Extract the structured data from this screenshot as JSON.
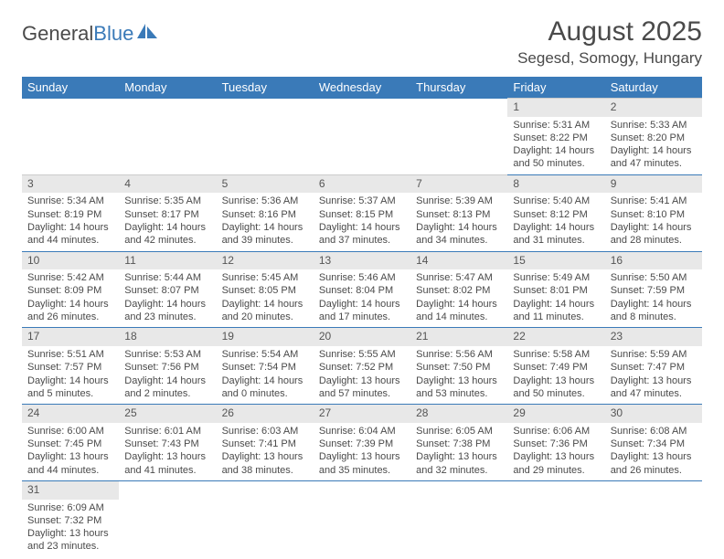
{
  "brand": {
    "part1": "General",
    "part2": "Blue"
  },
  "title": "August 2025",
  "location": "Segesd, Somogy, Hungary",
  "colors": {
    "accent": "#3a7ab8",
    "header_bg": "#3a7ab8",
    "daynum_bg": "#e8e8e8",
    "text": "#4a4a4a"
  },
  "daynames": [
    "Sunday",
    "Monday",
    "Tuesday",
    "Wednesday",
    "Thursday",
    "Friday",
    "Saturday"
  ],
  "layout": {
    "first_weekday_index": 5,
    "days_in_month": 31
  },
  "days": {
    "1": {
      "sunrise": "5:31 AM",
      "sunset": "8:22 PM",
      "dl1": "Daylight: 14 hours",
      "dl2": "and 50 minutes."
    },
    "2": {
      "sunrise": "5:33 AM",
      "sunset": "8:20 PM",
      "dl1": "Daylight: 14 hours",
      "dl2": "and 47 minutes."
    },
    "3": {
      "sunrise": "5:34 AM",
      "sunset": "8:19 PM",
      "dl1": "Daylight: 14 hours",
      "dl2": "and 44 minutes."
    },
    "4": {
      "sunrise": "5:35 AM",
      "sunset": "8:17 PM",
      "dl1": "Daylight: 14 hours",
      "dl2": "and 42 minutes."
    },
    "5": {
      "sunrise": "5:36 AM",
      "sunset": "8:16 PM",
      "dl1": "Daylight: 14 hours",
      "dl2": "and 39 minutes."
    },
    "6": {
      "sunrise": "5:37 AM",
      "sunset": "8:15 PM",
      "dl1": "Daylight: 14 hours",
      "dl2": "and 37 minutes."
    },
    "7": {
      "sunrise": "5:39 AM",
      "sunset": "8:13 PM",
      "dl1": "Daylight: 14 hours",
      "dl2": "and 34 minutes."
    },
    "8": {
      "sunrise": "5:40 AM",
      "sunset": "8:12 PM",
      "dl1": "Daylight: 14 hours",
      "dl2": "and 31 minutes."
    },
    "9": {
      "sunrise": "5:41 AM",
      "sunset": "8:10 PM",
      "dl1": "Daylight: 14 hours",
      "dl2": "and 28 minutes."
    },
    "10": {
      "sunrise": "5:42 AM",
      "sunset": "8:09 PM",
      "dl1": "Daylight: 14 hours",
      "dl2": "and 26 minutes."
    },
    "11": {
      "sunrise": "5:44 AM",
      "sunset": "8:07 PM",
      "dl1": "Daylight: 14 hours",
      "dl2": "and 23 minutes."
    },
    "12": {
      "sunrise": "5:45 AM",
      "sunset": "8:05 PM",
      "dl1": "Daylight: 14 hours",
      "dl2": "and 20 minutes."
    },
    "13": {
      "sunrise": "5:46 AM",
      "sunset": "8:04 PM",
      "dl1": "Daylight: 14 hours",
      "dl2": "and 17 minutes."
    },
    "14": {
      "sunrise": "5:47 AM",
      "sunset": "8:02 PM",
      "dl1": "Daylight: 14 hours",
      "dl2": "and 14 minutes."
    },
    "15": {
      "sunrise": "5:49 AM",
      "sunset": "8:01 PM",
      "dl1": "Daylight: 14 hours",
      "dl2": "and 11 minutes."
    },
    "16": {
      "sunrise": "5:50 AM",
      "sunset": "7:59 PM",
      "dl1": "Daylight: 14 hours",
      "dl2": "and 8 minutes."
    },
    "17": {
      "sunrise": "5:51 AM",
      "sunset": "7:57 PM",
      "dl1": "Daylight: 14 hours",
      "dl2": "and 5 minutes."
    },
    "18": {
      "sunrise": "5:53 AM",
      "sunset": "7:56 PM",
      "dl1": "Daylight: 14 hours",
      "dl2": "and 2 minutes."
    },
    "19": {
      "sunrise": "5:54 AM",
      "sunset": "7:54 PM",
      "dl1": "Daylight: 14 hours",
      "dl2": "and 0 minutes."
    },
    "20": {
      "sunrise": "5:55 AM",
      "sunset": "7:52 PM",
      "dl1": "Daylight: 13 hours",
      "dl2": "and 57 minutes."
    },
    "21": {
      "sunrise": "5:56 AM",
      "sunset": "7:50 PM",
      "dl1": "Daylight: 13 hours",
      "dl2": "and 53 minutes."
    },
    "22": {
      "sunrise": "5:58 AM",
      "sunset": "7:49 PM",
      "dl1": "Daylight: 13 hours",
      "dl2": "and 50 minutes."
    },
    "23": {
      "sunrise": "5:59 AM",
      "sunset": "7:47 PM",
      "dl1": "Daylight: 13 hours",
      "dl2": "and 47 minutes."
    },
    "24": {
      "sunrise": "6:00 AM",
      "sunset": "7:45 PM",
      "dl1": "Daylight: 13 hours",
      "dl2": "and 44 minutes."
    },
    "25": {
      "sunrise": "6:01 AM",
      "sunset": "7:43 PM",
      "dl1": "Daylight: 13 hours",
      "dl2": "and 41 minutes."
    },
    "26": {
      "sunrise": "6:03 AM",
      "sunset": "7:41 PM",
      "dl1": "Daylight: 13 hours",
      "dl2": "and 38 minutes."
    },
    "27": {
      "sunrise": "6:04 AM",
      "sunset": "7:39 PM",
      "dl1": "Daylight: 13 hours",
      "dl2": "and 35 minutes."
    },
    "28": {
      "sunrise": "6:05 AM",
      "sunset": "7:38 PM",
      "dl1": "Daylight: 13 hours",
      "dl2": "and 32 minutes."
    },
    "29": {
      "sunrise": "6:06 AM",
      "sunset": "7:36 PM",
      "dl1": "Daylight: 13 hours",
      "dl2": "and 29 minutes."
    },
    "30": {
      "sunrise": "6:08 AM",
      "sunset": "7:34 PM",
      "dl1": "Daylight: 13 hours",
      "dl2": "and 26 minutes."
    },
    "31": {
      "sunrise": "6:09 AM",
      "sunset": "7:32 PM",
      "dl1": "Daylight: 13 hours",
      "dl2": "and 23 minutes."
    }
  },
  "labels": {
    "sunrise_prefix": "Sunrise: ",
    "sunset_prefix": "Sunset: "
  }
}
